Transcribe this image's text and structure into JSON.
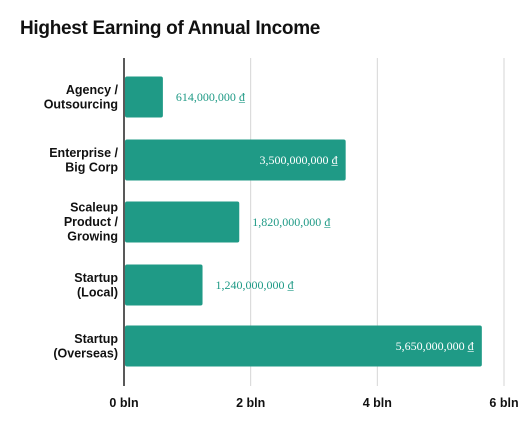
{
  "chart_data": {
    "type": "bar",
    "orientation": "horizontal",
    "title": "Highest Earning of Annual Income",
    "categories": [
      [
        "Agency /",
        "Outsourcing"
      ],
      [
        "Enterprise /",
        "Big Corp"
      ],
      [
        "Scaleup",
        "Product /",
        "Growing"
      ],
      [
        "Startup",
        "(Local)"
      ],
      [
        "Startup",
        "(Overseas)"
      ]
    ],
    "values": [
      614000000,
      3500000000,
      1820000000,
      1240000000,
      5650000000
    ],
    "value_labels": [
      "614,000,000 ₫",
      "3,500,000,000 ₫",
      "1,820,000,000 ₫",
      "1,240,000,000 ₫",
      "5,650,000,000 ₫"
    ],
    "xlim": [
      0,
      6000000000
    ],
    "x_ticks": [
      0,
      2000000000,
      4000000000,
      6000000000
    ],
    "x_tick_labels": [
      "0 bln",
      "2 bln",
      "4 bln",
      "6 bln"
    ],
    "xlabel": "",
    "ylabel": "",
    "grid": "vertical",
    "legend": "none",
    "colors": {
      "bar": "#1f9a86",
      "grid": "#d6d6d6",
      "axis": "#222222",
      "label_inside": "#ffffff",
      "label_outside": "#1f9a86"
    }
  }
}
